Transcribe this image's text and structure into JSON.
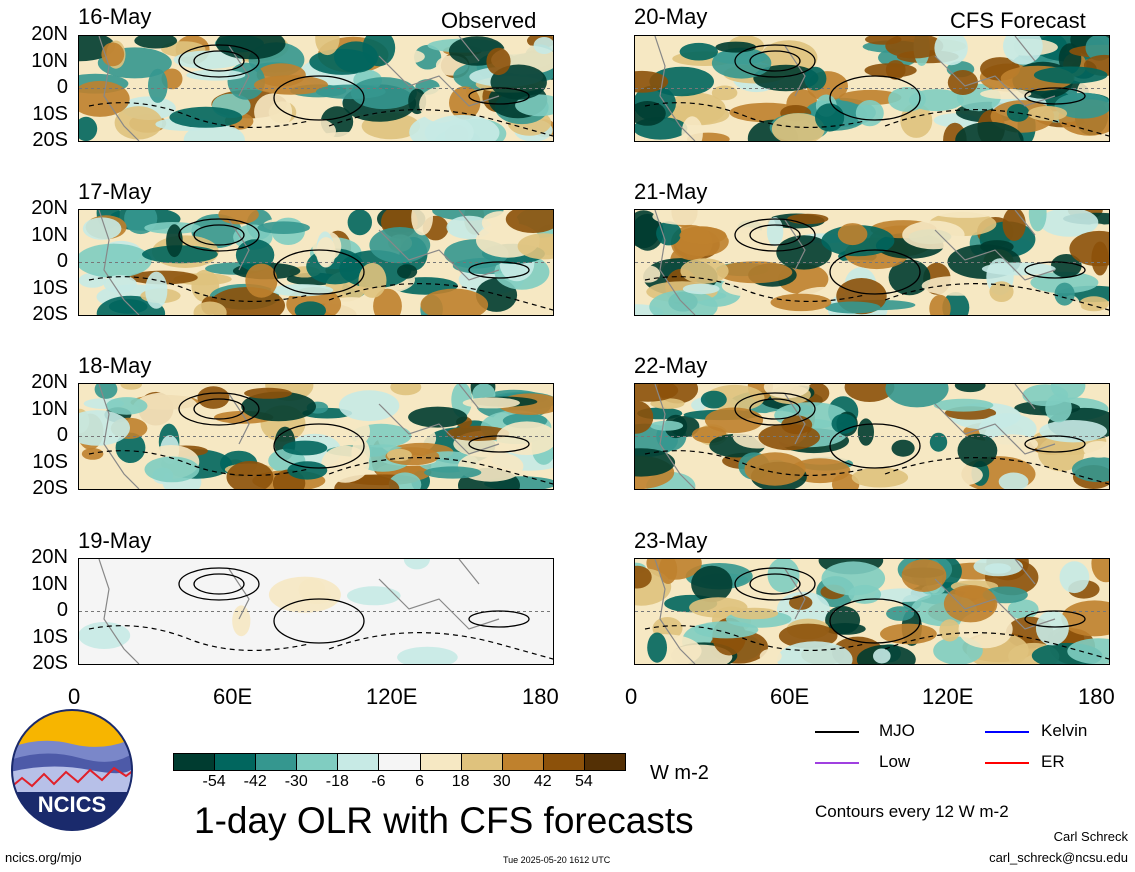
{
  "title": "1-day OLR with CFS forecasts",
  "headers": {
    "observed": "Observed",
    "forecast": "CFS Forecast"
  },
  "panels_observed": [
    {
      "date": "16-May",
      "fill": "full"
    },
    {
      "date": "17-May",
      "fill": "full"
    },
    {
      "date": "18-May",
      "fill": "full"
    },
    {
      "date": "19-May",
      "fill": "sparse"
    }
  ],
  "panels_forecast": [
    {
      "date": "20-May"
    },
    {
      "date": "21-May"
    },
    {
      "date": "22-May"
    },
    {
      "date": "23-May"
    }
  ],
  "lat_labels": [
    "20N",
    "10N",
    "0",
    "10S",
    "20S"
  ],
  "lon_labels": [
    "0",
    "60E",
    "120E",
    "180"
  ],
  "colorbar": {
    "ticks": [
      "-54",
      "-42",
      "-30",
      "-18",
      "-6",
      "6",
      "18",
      "30",
      "42",
      "54"
    ],
    "colors": [
      "#003c30",
      "#01665e",
      "#35978f",
      "#80cdc1",
      "#c7eae5",
      "#f5f5f5",
      "#f6e8c3",
      "#dfc27d",
      "#bf812d",
      "#8c510a",
      "#543005"
    ],
    "units": "W m-2"
  },
  "legend": {
    "items": [
      {
        "label": "MJO",
        "color": "#000000"
      },
      {
        "label": "Kelvin",
        "color": "#0000ff"
      },
      {
        "label": "Low",
        "color": "#a040e0"
      },
      {
        "label": "ER",
        "color": "#ff0000"
      }
    ],
    "contour_note": "Contours every 12 W m-2"
  },
  "logo_text": "NCICS",
  "footer": {
    "url": "ncics.org/mjo",
    "timestamp": "Tue 2025-05-20 1612 UTC",
    "author": "Carl Schreck",
    "email": "carl_schreck@ncsu.edu"
  }
}
